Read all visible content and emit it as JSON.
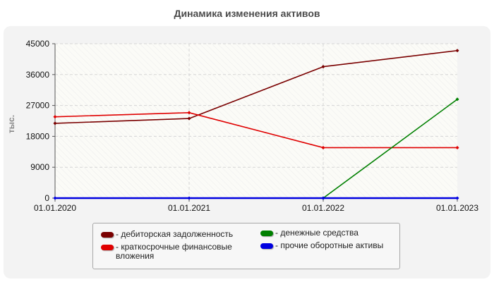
{
  "chart_data": {
    "type": "line",
    "title": "Динамика изменения активов",
    "ylabel": "тыс.",
    "xlabel": "",
    "ylim": [
      0,
      45000
    ],
    "yticks": [
      "0",
      "9000",
      "18000",
      "27000",
      "36000",
      "45000"
    ],
    "ytick_values": [
      0,
      9000,
      18000,
      27000,
      36000,
      45000
    ],
    "categories": [
      "01.01.2020",
      "01.01.2021",
      "01.01.2022",
      "01.01.2023"
    ],
    "grid": true,
    "legend_position": "bottom",
    "series": [
      {
        "name": "дебиторская задолженность",
        "color": "#7a0000",
        "values": [
          21800,
          23200,
          38300,
          43000
        ]
      },
      {
        "name": "краткосрочные финансовые вложения",
        "color": "#e00000",
        "values": [
          23700,
          24900,
          14700,
          14700
        ]
      },
      {
        "name": "денежные средства",
        "color": "#008000",
        "values": [
          null,
          null,
          0,
          28800
        ]
      },
      {
        "name": "прочие оборотные активы",
        "color": "#0000e0",
        "values": [
          0,
          0,
          0,
          0
        ]
      }
    ]
  },
  "legend": {
    "items": [
      {
        "label": "- дебиторская задолженность",
        "color": "#7a0000"
      },
      {
        "label": "- денежные средства",
        "color": "#008000"
      },
      {
        "label": "- краткосрочные финансовые вложения",
        "color": "#e00000"
      },
      {
        "label": "- прочие оборотные активы",
        "color": "#0000e0"
      }
    ]
  }
}
